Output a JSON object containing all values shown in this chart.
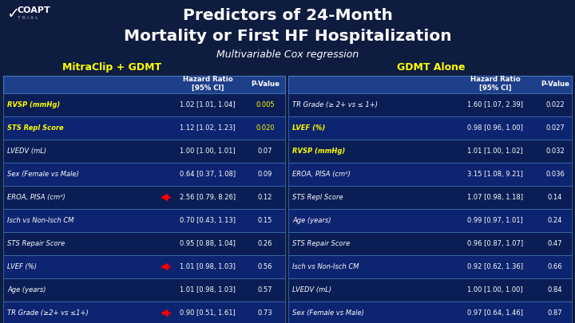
{
  "title_line1": "Predictors of 24-Month",
  "title_line2": "Mortality or First HF Hospitalization",
  "subtitle": "Multivariable Cox regression",
  "left_header": "MitraClip + GDMT",
  "right_header": "GDMT Alone",
  "bg_color": "#0e1c40",
  "table_header_bg": "#1e3f8a",
  "row_bg_odd": "#0a1e55",
  "row_bg_even": "#0d2470",
  "title_color": "#ffffff",
  "subtitle_color": "#ffffff",
  "left_header_color": "#ffff00",
  "right_header_color": "#ffff00",
  "header_text_color": "#ffffff",
  "row_text_color": "#ffffff",
  "highlight_text_color": "#ffff00",
  "border_color": "#4477bb",
  "left_rows": [
    {
      "predictor": "RVSP (mmHg)",
      "hr": "1.02 [1.01, 1.04]",
      "pval": "0.005",
      "highlight": true,
      "arrow": false
    },
    {
      "predictor": "STS Repl Score",
      "hr": "1.12 [1.02, 1.23]",
      "pval": "0.020",
      "highlight": true,
      "arrow": false
    },
    {
      "predictor": "LVEDV (mL)",
      "hr": "1.00 [1.00, 1.01]",
      "pval": "0.07",
      "highlight": false,
      "arrow": false
    },
    {
      "predictor": "Sex (Female vs Male)",
      "hr": "0.64 [0.37, 1.08]",
      "pval": "0.09",
      "highlight": false,
      "arrow": false
    },
    {
      "predictor": "EROA, PISA (cm²)",
      "hr": "2.56 [0.79, 8.26]",
      "pval": "0.12",
      "highlight": false,
      "arrow": true
    },
    {
      "predictor": "Isch vs Non-Isch CM",
      "hr": "0.70 [0.43, 1.13]",
      "pval": "0.15",
      "highlight": false,
      "arrow": false
    },
    {
      "predictor": "STS Repair Score",
      "hr": "0.95 [0.88, 1.04]",
      "pval": "0.26",
      "highlight": false,
      "arrow": false
    },
    {
      "predictor": "LVEF (%)",
      "hr": "1.01 [0.98, 1.03]",
      "pval": "0.56",
      "highlight": false,
      "arrow": true
    },
    {
      "predictor": "Age (years)",
      "hr": "1.01 [0.98, 1.03]",
      "pval": "0.57",
      "highlight": false,
      "arrow": false
    },
    {
      "predictor": "TR Grade (≥2+ vs ≤1+)",
      "hr": "0.90 [0.51, 1.61]",
      "pval": "0.73",
      "highlight": false,
      "arrow": true
    }
  ],
  "right_rows": [
    {
      "predictor": "TR Grade (≥ 2+ vs ≤ 1+)",
      "hr": "1.60 [1.07, 2.39]",
      "pval": "0.022",
      "highlight": false
    },
    {
      "predictor": "LVEF (%)",
      "hr": "0.98 [0.96, 1.00]",
      "pval": "0.027",
      "highlight": true
    },
    {
      "predictor": "RVSP (mmHg)",
      "hr": "1.01 [1.00, 1.02]",
      "pval": "0.032",
      "highlight": true
    },
    {
      "predictor": "EROA, PISA (cm²)",
      "hr": "3.15 [1.08, 9.21]",
      "pval": "0.036",
      "highlight": false
    },
    {
      "predictor": "STS Repl Score",
      "hr": "1.07 [0.98, 1.18]",
      "pval": "0.14",
      "highlight": false
    },
    {
      "predictor": "Age (years)",
      "hr": "0.99 [0.97, 1.01]",
      "pval": "0.24",
      "highlight": false
    },
    {
      "predictor": "STS Repair Score",
      "hr": "0.96 [0.87, 1.07]",
      "pval": "0.47",
      "highlight": false
    },
    {
      "predictor": "Isch vs Non-Isch CM",
      "hr": "0.92 [0.62, 1.36]",
      "pval": "0.66",
      "highlight": false
    },
    {
      "predictor": "LVEDV (mL)",
      "hr": "1.00 [1.00, 1.00]",
      "pval": "0.84",
      "highlight": false
    },
    {
      "predictor": "Sex (Female vs Male)",
      "hr": "0.97 [0.64, 1.46]",
      "pval": "0.87",
      "highlight": false
    }
  ]
}
